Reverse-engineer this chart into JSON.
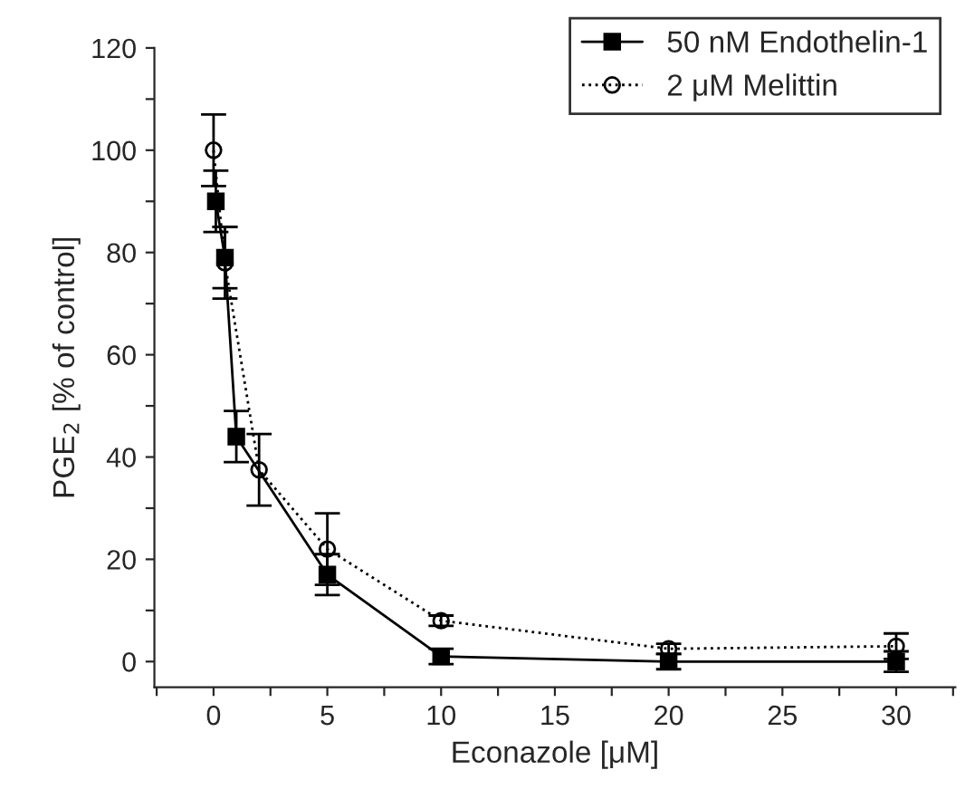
{
  "chart_data": {
    "type": "line",
    "xlabel": "Econazole [μM]",
    "ylabel": "PGE$_{2}$ [% of control]",
    "xlim": [
      -2.6,
      32.6
    ],
    "ylim": [
      -5,
      120
    ],
    "xticks": [
      {
        "value": -2.5,
        "label": null
      },
      0,
      {
        "value": 2.5,
        "label": null
      },
      5,
      {
        "value": 7.5,
        "label": null
      },
      10,
      {
        "value": 12.5,
        "label": null
      },
      15,
      {
        "value": 17.5,
        "label": null
      },
      20,
      {
        "value": 22.5,
        "label": null
      },
      25,
      {
        "value": 27.5,
        "label": null
      },
      30,
      {
        "value": 32.5,
        "label": null
      }
    ],
    "yticks": [
      0,
      {
        "value": 10,
        "label": null
      },
      20,
      {
        "value": 30,
        "label": null
      },
      40,
      {
        "value": 50,
        "label": null
      },
      60,
      {
        "value": 70,
        "label": null
      },
      80,
      {
        "value": 90,
        "label": null
      },
      100,
      {
        "value": 110,
        "label": null
      },
      120
    ],
    "legend": "top right",
    "grid": false,
    "series": [
      {
        "name": "50 nM Endothelin-1",
        "color": "#000000",
        "marker": "square",
        "line_style": "solid",
        "x": [
          0.1,
          0.5,
          1,
          5,
          10,
          20,
          30
        ],
        "values": [
          90,
          79,
          44,
          17,
          1,
          0,
          0
        ],
        "errors": [
          6,
          6,
          5,
          4,
          1.5,
          1.5,
          2
        ]
      },
      {
        "name": "2 μM Melittin",
        "color": "#000000",
        "marker": "circle",
        "line_style": "dotted",
        "x": [
          0,
          0.5,
          2,
          5,
          10,
          20,
          30
        ],
        "values": [
          100,
          78,
          37.5,
          22,
          8,
          2.5,
          3
        ],
        "errors": [
          7,
          7,
          7,
          7,
          1,
          1,
          2.5
        ]
      }
    ]
  }
}
